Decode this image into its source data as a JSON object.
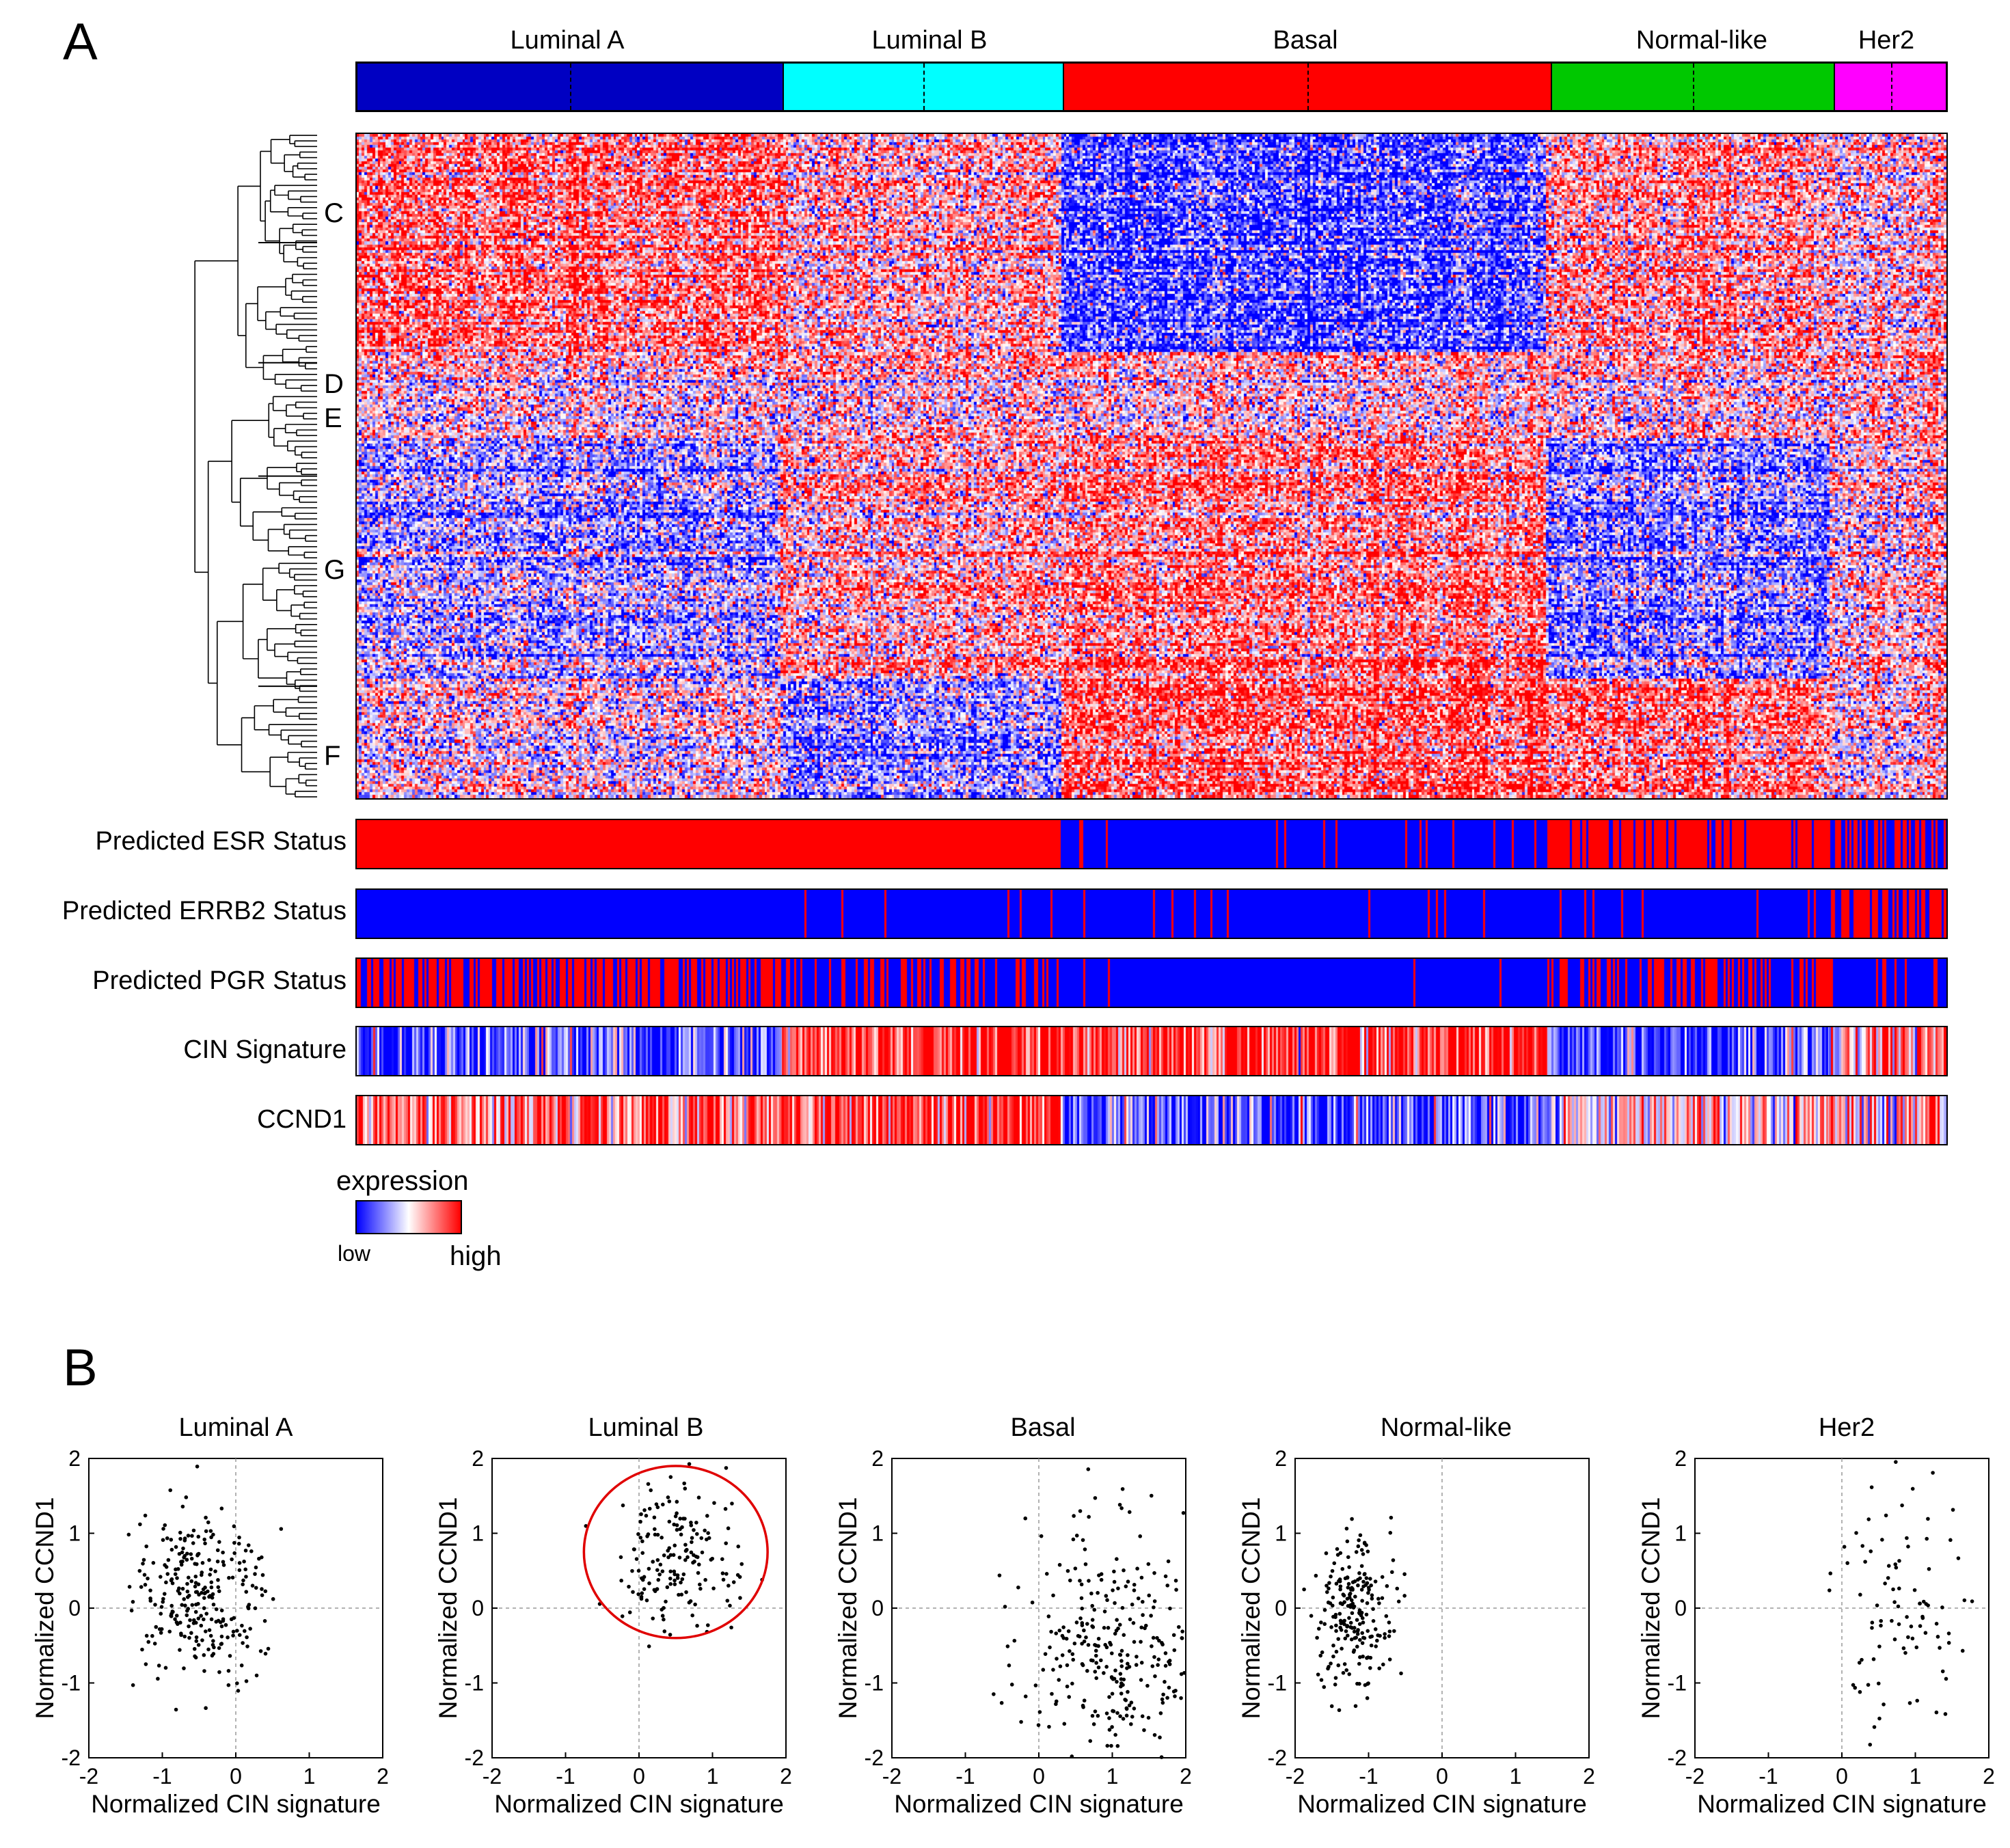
{
  "panel_a": {
    "letter": "A",
    "subtypes": [
      {
        "label": "Luminal A",
        "color": "#0000c2"
      },
      {
        "label": "Luminal B",
        "color": "#00ffff"
      },
      {
        "label": "Basal",
        "color": "#ff0000"
      },
      {
        "label": "Normal-like",
        "color": "#00c800"
      },
      {
        "label": "Her2",
        "color": "#ff00ff"
      }
    ],
    "clusters": [
      "C",
      "D",
      "E",
      "G",
      "F"
    ],
    "tracks": [
      "Predicted ESR Status",
      "Predicted ERRB2 Status",
      "Predicted PGR Status",
      "CIN Signature",
      "CCND1"
    ],
    "legend": {
      "title": "expression",
      "low": "low",
      "high": "high",
      "low_color": "#0000ff",
      "mid_color": "#ffffff",
      "high_color": "#ff0000"
    }
  },
  "panel_b": {
    "letter": "B"
  },
  "chart_data": [
    {
      "type": "scatter",
      "title": "Luminal A",
      "xlabel": "Normalized CIN signature",
      "ylabel": "Normalized CCND1",
      "xlim": [
        -2,
        2
      ],
      "ylim": [
        -2,
        2
      ],
      "xticks": [
        "-2",
        "-1",
        "0",
        "1",
        "2"
      ],
      "yticks": [
        "-2",
        "-1",
        "0",
        "1",
        "2"
      ],
      "center": [
        -0.5,
        0.2
      ],
      "spread": [
        0.45,
        0.6
      ],
      "n": 280
    },
    {
      "type": "scatter",
      "title": "Luminal B",
      "xlabel": "Normalized CIN signature",
      "ylabel": "Normalized CCND1",
      "xlim": [
        -2,
        2
      ],
      "ylim": [
        -2,
        2
      ],
      "xticks": [
        "-2",
        "-1",
        "0",
        "1",
        "2"
      ],
      "yticks": [
        "-2",
        "-1",
        "0",
        "1",
        "2"
      ],
      "center": [
        0.5,
        0.7
      ],
      "spread": [
        0.45,
        0.55
      ],
      "n": 170,
      "annotation": {
        "shape": "circle",
        "color": "#e00000",
        "cx": 0.5,
        "cy": 0.75,
        "r": 1.25
      }
    },
    {
      "type": "scatter",
      "title": "Basal",
      "xlabel": "Normalized CIN signature",
      "ylabel": "Normalized CCND1",
      "xlim": [
        -2,
        2
      ],
      "ylim": [
        -2,
        2
      ],
      "xticks": [
        "-2",
        "-1",
        "0",
        "1",
        "2"
      ],
      "yticks": [
        "-2",
        "-1",
        "0",
        "1",
        "2"
      ],
      "center": [
        1.0,
        -0.6
      ],
      "spread": [
        0.6,
        0.8
      ],
      "n": 300
    },
    {
      "type": "scatter",
      "title": "Normal-like",
      "xlabel": "Normalized CIN signature",
      "ylabel": "Normalized CCND1",
      "xlim": [
        -2,
        2
      ],
      "ylim": [
        -2,
        2
      ],
      "xticks": [
        "-2",
        "-1",
        "0",
        "1",
        "2"
      ],
      "yticks": [
        "-2",
        "-1",
        "0",
        "1",
        "2"
      ],
      "center": [
        -1.2,
        -0.1
      ],
      "spread": [
        0.25,
        0.55
      ],
      "n": 220
    },
    {
      "type": "scatter",
      "title": "Her2",
      "xlabel": "Normalized CIN signature",
      "ylabel": "Normalized CCND1",
      "xlim": [
        -2,
        2
      ],
      "ylim": [
        -2,
        2
      ],
      "xticks": [
        "-2",
        "-1",
        "0",
        "1",
        "2"
      ],
      "yticks": [
        "-2",
        "-1",
        "0",
        "1",
        "2"
      ],
      "center": [
        0.8,
        0.0
      ],
      "spread": [
        0.45,
        0.8
      ],
      "n": 90
    }
  ]
}
